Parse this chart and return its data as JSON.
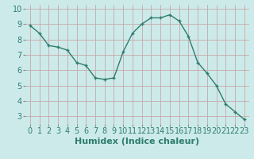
{
  "x": [
    0,
    1,
    2,
    3,
    4,
    5,
    6,
    7,
    8,
    9,
    10,
    11,
    12,
    13,
    14,
    15,
    16,
    17,
    18,
    19,
    20,
    21,
    22,
    23
  ],
  "y": [
    8.9,
    8.4,
    7.6,
    7.5,
    7.3,
    6.5,
    6.3,
    5.5,
    5.4,
    5.5,
    7.2,
    8.4,
    9.0,
    9.4,
    9.4,
    9.6,
    9.2,
    8.2,
    6.5,
    5.8,
    5.0,
    3.8,
    3.3,
    2.8
  ],
  "title": "",
  "xlabel": "Humidex (Indice chaleur)",
  "ylabel": "",
  "xlim": [
    -0.5,
    23.5
  ],
  "ylim": [
    2.5,
    10.25
  ],
  "yticks": [
    3,
    4,
    5,
    6,
    7,
    8,
    9,
    10
  ],
  "xticks": [
    0,
    1,
    2,
    3,
    4,
    5,
    6,
    7,
    8,
    9,
    10,
    11,
    12,
    13,
    14,
    15,
    16,
    17,
    18,
    19,
    20,
    21,
    22,
    23
  ],
  "line_color": "#2e7d6e",
  "marker": "+",
  "bg_color": "#cdeaea",
  "grid_color": "#c8a8a8",
  "xlabel_fontsize": 8,
  "tick_fontsize": 7
}
